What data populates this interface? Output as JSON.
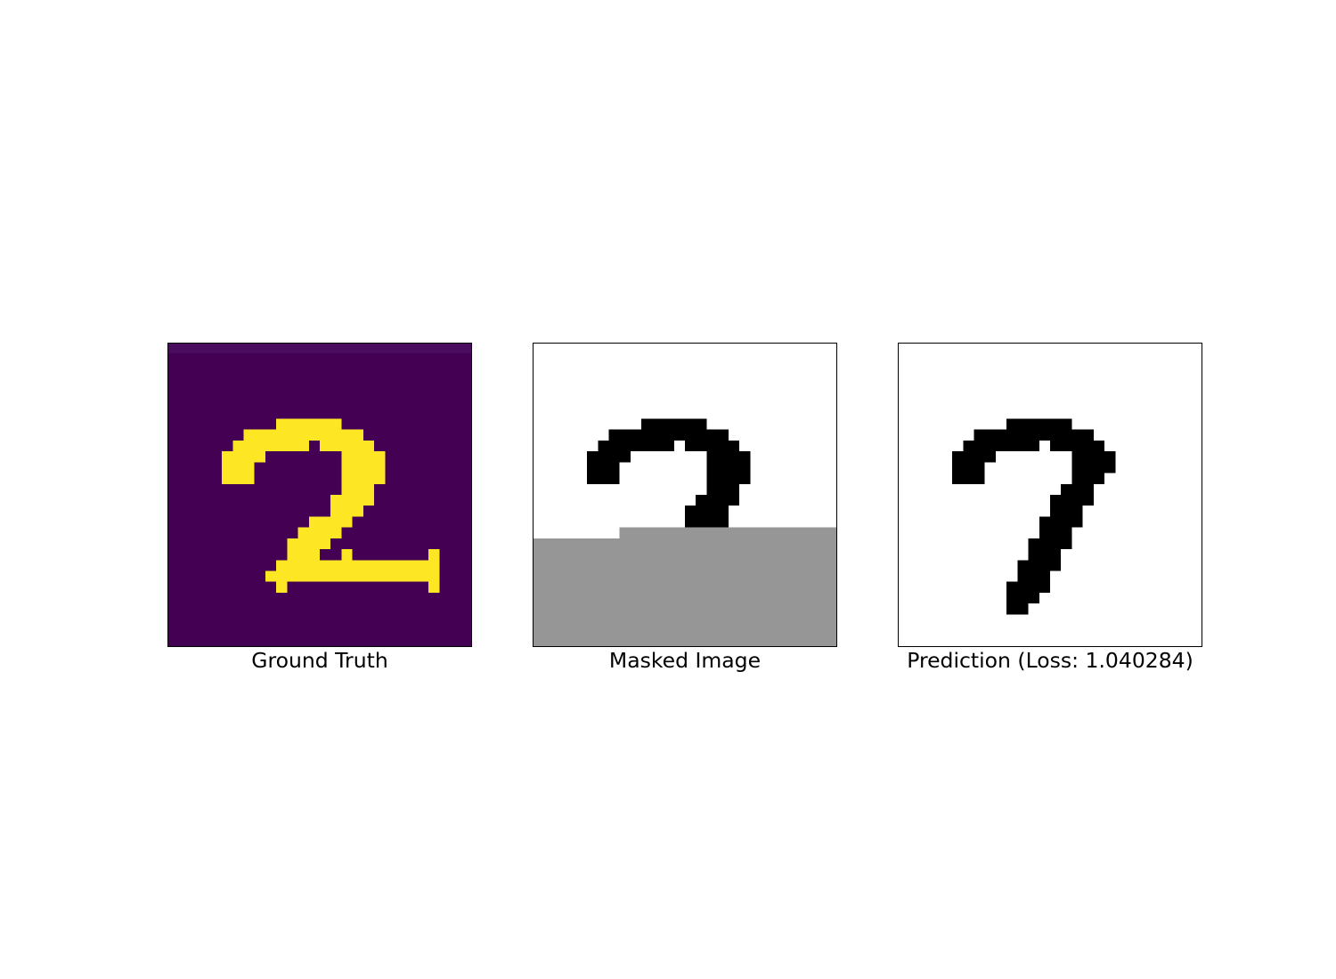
{
  "figure": {
    "panels": [
      {
        "id": "ground-truth",
        "caption": "Ground Truth",
        "colormap": "viridis",
        "background_color": "#440154",
        "foreground_color": "#fde725",
        "top_row_color": "#4a0c5f"
      },
      {
        "id": "masked-image",
        "caption": "Masked Image",
        "colormap": "binary",
        "background_color": "#ffffff",
        "foreground_color": "#000000",
        "mask_color": "#969696"
      },
      {
        "id": "prediction",
        "caption": "Prediction (Loss: 1.040284)",
        "colormap": "binary",
        "background_color": "#ffffff",
        "foreground_color": "#000000"
      }
    ]
  }
}
